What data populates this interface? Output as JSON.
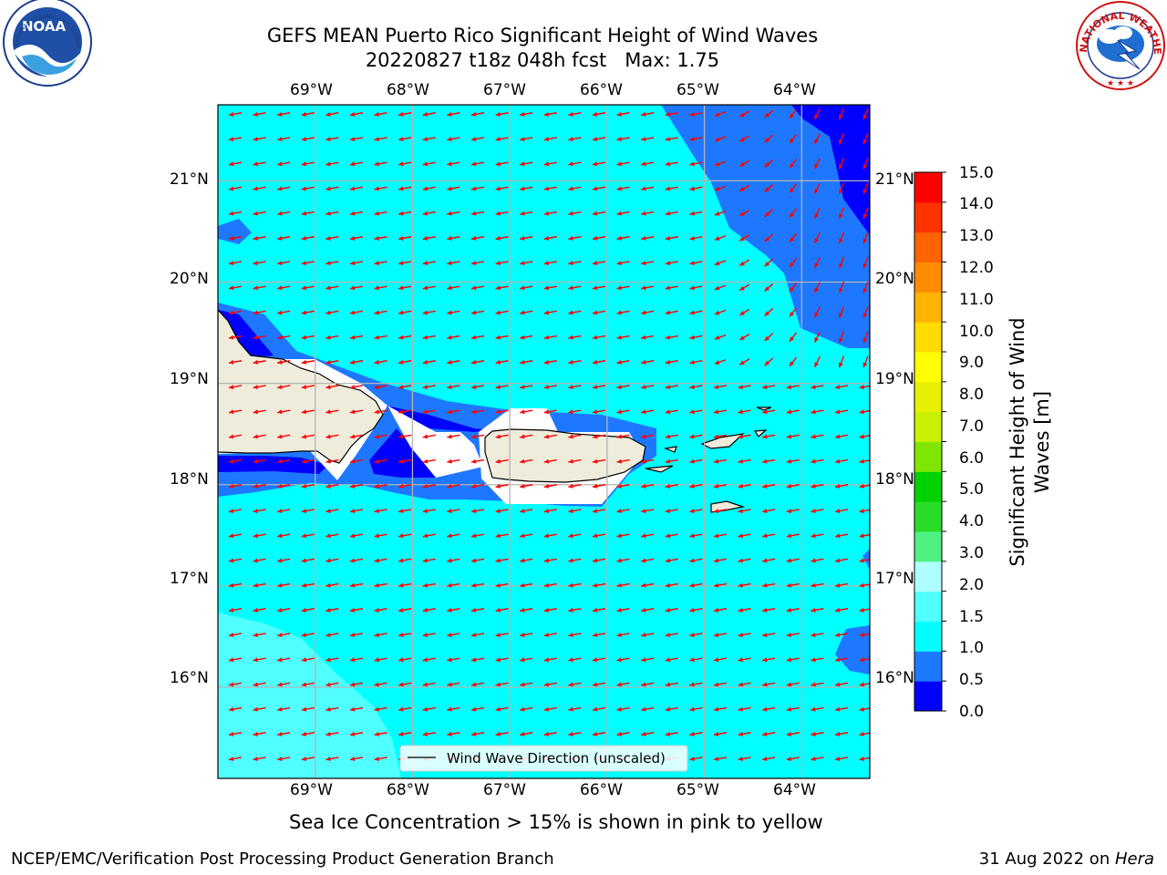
{
  "title": {
    "line1": "GEFS MEAN Puerto Rico Significant Height of Wind Waves",
    "line2": "20220827 t18z 048h fcst   Max: 1.75"
  },
  "axes": {
    "lon_labels": [
      "69°W",
      "68°W",
      "67°W",
      "66°W",
      "65°W",
      "64°W"
    ],
    "lat_labels": [
      "21°N",
      "20°N",
      "19°N",
      "18°N",
      "17°N",
      "16°N"
    ],
    "lon_range": [
      -70.0,
      -63.3
    ],
    "lat_range": [
      15.1,
      21.75
    ]
  },
  "colorbar": {
    "label": "Significant Height of Wind Waves [m]",
    "ticks": [
      "15.0",
      "14.0",
      "13.0",
      "12.0",
      "11.0",
      "10.0",
      "9.0",
      "8.0",
      "7.0",
      "6.0",
      "5.0",
      "4.0",
      "3.0",
      "2.0",
      "1.5",
      "1.0",
      "0.5",
      "0.0"
    ],
    "colors": [
      "#0000ff",
      "#1e78ff",
      "#00ffff",
      "#50ffff",
      "#b0ffff",
      "#50f082",
      "#2adc2a",
      "#00d200",
      "#7ee600",
      "#c8f000",
      "#e6f000",
      "#ffff00",
      "#ffdc00",
      "#ffb400",
      "#ff8c00",
      "#ff6400",
      "#ff3200",
      "#ff0000"
    ]
  },
  "legend": {
    "entry": "Wind Wave Direction (unscaled)"
  },
  "map_colors": {
    "land": "#efecdc",
    "arrow": "#ff0000",
    "grid": "#b4b4b4"
  },
  "note": "Sea Ice Concentration > 15% is shown in pink to yellow",
  "footer": {
    "left": "NCEP/EMC/Verification Post Processing Product Generation Branch",
    "date": "31 Aug 2022 on ",
    "machine": "Hera"
  },
  "logos": {
    "noaa_text": "NOAA",
    "noaa_ring": "NATIONAL OCEANIC AND ATMOSPHERIC ADMINISTRATION · U.S. DEPARTMENT OF COMMERCE ·",
    "nws_ring": "NATIONAL WEATHER SERVICE"
  }
}
